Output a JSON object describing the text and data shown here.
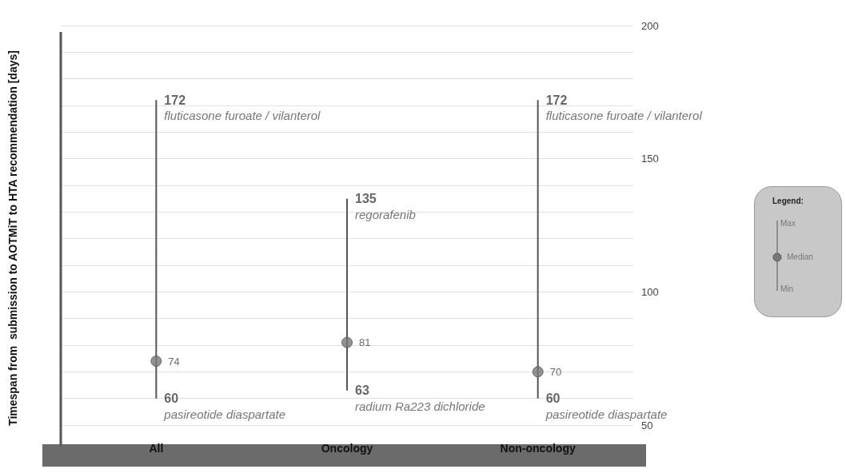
{
  "chart_data": {
    "type": "bar",
    "ylabel": "Timespan from  submission to AOTMiT to HTA recommendation [days]",
    "categories": [
      "All",
      "Oncology",
      "Non-oncology"
    ],
    "series": [
      {
        "color": "#555555",
        "base": [
          60,
          63,
          60
        ],
        "values": [
          112,
          72,
          112
        ]
      },
      {
        "type": "scatter",
        "color": "#777777",
        "marker": "circle",
        "x": [
          "All",
          "Oncology",
          "Non-oncology"
        ],
        "values": [
          74,
          81,
          70
        ],
        "value_labels": [
          "74",
          "81",
          "70"
        ]
      }
    ],
    "ylim": [
      50,
      200
    ],
    "yticks": [
      50,
      {
        "value": 60,
        "label": null
      },
      {
        "value": 70,
        "label": null
      },
      {
        "value": 80,
        "label": null
      },
      {
        "value": 90,
        "label": null
      },
      100,
      {
        "value": 110,
        "label": null
      },
      {
        "value": 120,
        "label": null
      },
      {
        "value": 130,
        "label": null
      },
      {
        "value": 140,
        "label": null
      },
      150,
      {
        "value": 160,
        "label": null
      },
      {
        "value": 170,
        "label": null
      },
      {
        "value": 180,
        "label": null
      },
      {
        "value": 190,
        "label": null
      },
      200
    ],
    "grid": "y",
    "annotations": [
      {
        "text": "172",
        "x": "All",
        "y": 172
      },
      {
        "text": "fluticasone furoate / vilanterol",
        "x": "All",
        "y": 172
      },
      {
        "text": "60",
        "x": "All",
        "y": 60
      },
      {
        "text": "pasireotide diaspartate",
        "x": "All",
        "y": 60
      },
      {
        "text": "135",
        "x": "Oncology",
        "y": 135
      },
      {
        "text": "regorafenib",
        "x": "Oncology",
        "y": 135
      },
      {
        "text": "63",
        "x": "Oncology",
        "y": 63
      },
      {
        "text": "radium Ra223 dichloride",
        "x": "Oncology",
        "y": 63
      },
      {
        "text": "172",
        "x": "Non-oncology",
        "y": 172
      },
      {
        "text": "fluticasone furoate / vilanterol",
        "x": "Non-oncology",
        "y": 172
      },
      {
        "text": "60",
        "x": "Non-oncology",
        "y": 60
      },
      {
        "text": "pasireotide diaspartate",
        "x": "Non-oncology",
        "y": 60
      },
      "Legend:",
      "Max",
      "Median",
      "Min"
    ]
  }
}
